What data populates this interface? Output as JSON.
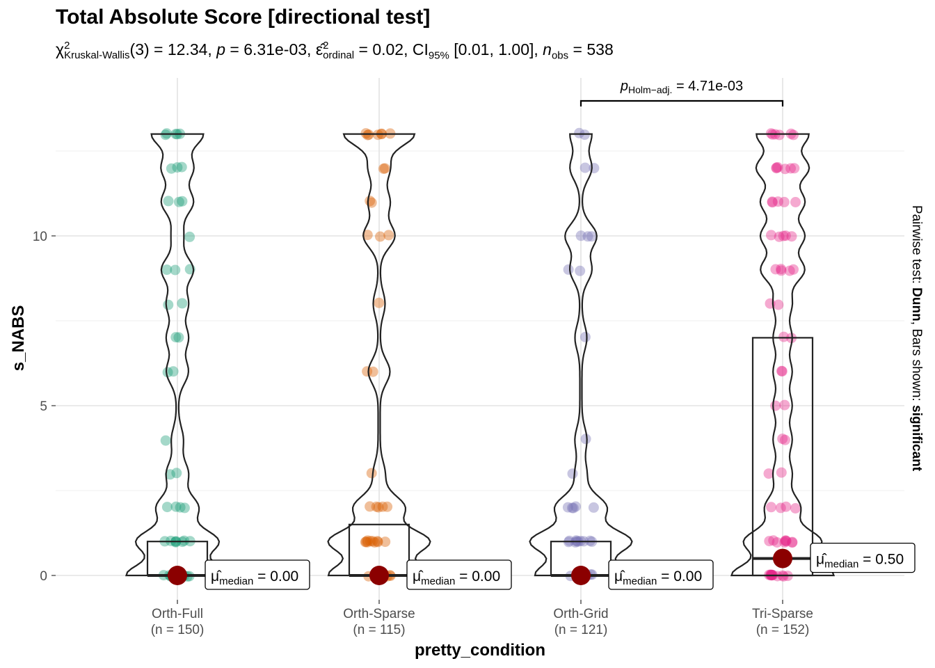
{
  "chart_data": {
    "type": "violin-box-scatter",
    "title": "Total Absolute Score [directional test]",
    "subtitle": {
      "stat_name": "Kruskal-Wallis",
      "df": "(3)",
      "stat_value": "= 12.34,",
      "p_label": "p",
      "p_value": "= 6.31e-03,",
      "effect_sub": "ordinal",
      "effect_value": "= 0.02, CI",
      "ci_sub": "95%",
      "ci_value": "[0.01, 1.00],",
      "n_label": "n",
      "n_sub": "obs",
      "n_value": "= 538"
    },
    "xlabel": "pretty_condition",
    "ylabel": "s_NABS",
    "right_caption": {
      "part1": "Pairwise test: ",
      "part2": "Dunn",
      "part3": ", Bars shown: ",
      "part4": "significant"
    },
    "ylim": [
      -1.2,
      14.2
    ],
    "yticks": [
      "0",
      "5",
      "10"
    ],
    "grid": true,
    "groups": [
      {
        "name": "Orth-Full",
        "n_label": "(n = 150)",
        "color": "#1B9E77",
        "median_label": "= 0.00",
        "median": 0,
        "q1": 0,
        "q3": 1,
        "points": [
          13,
          13,
          13,
          13,
          13,
          12,
          12,
          12,
          11,
          11,
          11,
          10,
          9,
          9,
          9,
          8,
          8,
          7,
          7,
          6,
          6,
          4,
          3,
          3,
          2,
          2,
          2,
          2,
          1,
          1,
          1,
          1,
          1,
          1,
          1,
          1,
          0,
          0,
          0,
          0,
          0,
          0,
          0,
          0,
          0,
          0
        ]
      },
      {
        "name": "Orth-Sparse",
        "n_label": "(n = 115)",
        "color": "#D95F02",
        "median_label": "= 0.00",
        "median": 0,
        "q1": 0,
        "q3": 1.5,
        "points": [
          13,
          13,
          13,
          13,
          13,
          13,
          13,
          12,
          12,
          11,
          11,
          10,
          10,
          10,
          8,
          6,
          6,
          3,
          2,
          2,
          2,
          2,
          2,
          1,
          1,
          1,
          1,
          1,
          1,
          1,
          1,
          1,
          1,
          0,
          0,
          0,
          0,
          0,
          0,
          0,
          0,
          0,
          0
        ]
      },
      {
        "name": "Orth-Grid",
        "n_label": "(n = 121)",
        "color": "#7570B3",
        "median_label": "= 0.00",
        "median": 0,
        "q1": 0,
        "q3": 1,
        "points": [
          13,
          13,
          12,
          12,
          10,
          10,
          10,
          9,
          9,
          7,
          4,
          3,
          2,
          2,
          2,
          2,
          2,
          1,
          1,
          1,
          1,
          1,
          1,
          1,
          1,
          1,
          1,
          0,
          0,
          0,
          0,
          0,
          0,
          0,
          0,
          0
        ]
      },
      {
        "name": "Tri-Sparse",
        "n_label": "(n = 152)",
        "color": "#E7298A",
        "median_label": "= 0.50",
        "median": 0.5,
        "q1": 0,
        "q3": 7,
        "points": [
          13,
          13,
          13,
          13,
          13,
          13,
          12,
          12,
          12,
          12,
          12,
          12,
          11,
          11,
          11,
          11,
          11,
          10,
          10,
          10,
          10,
          10,
          9,
          9,
          9,
          9,
          9,
          8,
          8,
          7,
          7,
          6,
          6,
          5,
          5,
          4,
          4,
          3,
          3,
          2,
          2,
          2,
          2,
          1,
          1,
          1,
          1,
          1,
          1,
          1,
          1,
          1,
          0,
          0,
          0,
          0,
          0,
          0,
          0,
          0,
          0,
          0,
          0,
          0
        ]
      }
    ],
    "median_symbol": "μ",
    "median_sub": "median",
    "pairwise": [
      {
        "from": 2,
        "to": 3,
        "label_p": "p",
        "label_sub": "Holm−adj.",
        "label_value": "= 4.71e-03"
      }
    ]
  }
}
